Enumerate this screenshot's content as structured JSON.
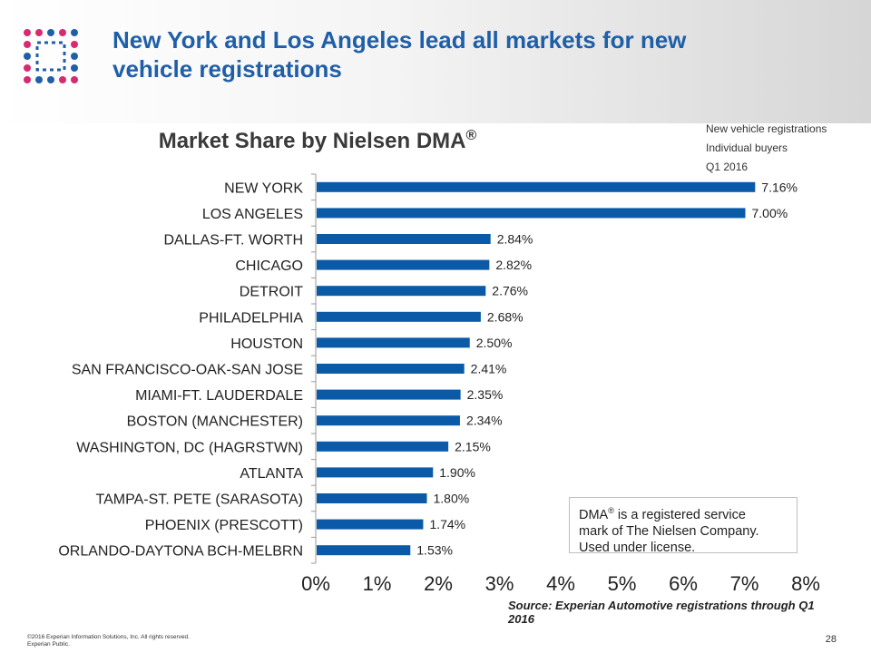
{
  "slide": {
    "title_line1": "New York and Los Angeles lead all markets for new",
    "title_line2": "vehicle registrations",
    "page_number": "28",
    "copyright": "©2016  Experian Information Solutions, Inc. All rights reserved.",
    "classification": "Experian Public."
  },
  "colors": {
    "bar": "#0a5aa8",
    "title": "#1f5fa8",
    "logo_blue": "#1f5fa8",
    "logo_pink": "#d62b70"
  },
  "chart_data": {
    "type": "bar",
    "orientation": "horizontal",
    "title": "Market Share by Nielsen DMA",
    "title_mark": "®",
    "legend_lines": [
      "New vehicle registrations",
      "Individual buyers",
      "Q1 2016"
    ],
    "categories": [
      "NEW YORK",
      "LOS ANGELES",
      "DALLAS-FT. WORTH",
      "CHICAGO",
      "DETROIT",
      "PHILADELPHIA",
      "HOUSTON",
      "SAN FRANCISCO-OAK-SAN JOSE",
      "MIAMI-FT. LAUDERDALE",
      "BOSTON (MANCHESTER)",
      "WASHINGTON, DC (HAGRSTWN)",
      "ATLANTA",
      "TAMPA-ST. PETE (SARASOTA)",
      "PHOENIX (PRESCOTT)",
      "ORLANDO-DAYTONA BCH-MELBRN"
    ],
    "values": [
      7.16,
      7.0,
      2.84,
      2.82,
      2.76,
      2.68,
      2.5,
      2.41,
      2.35,
      2.34,
      2.15,
      1.9,
      1.8,
      1.74,
      1.53
    ],
    "value_labels": [
      "7.16%",
      "7.00%",
      "2.84%",
      "2.82%",
      "2.76%",
      "2.68%",
      "2.50%",
      "2.41%",
      "2.35%",
      "2.34%",
      "2.15%",
      "1.90%",
      "1.80%",
      "1.74%",
      "1.53%"
    ],
    "xlim": [
      0,
      8
    ],
    "x_ticks": [
      "0%",
      "1%",
      "2%",
      "3%",
      "4%",
      "5%",
      "6%",
      "7%",
      "8%"
    ],
    "grid": false,
    "note_line1_a": "DMA",
    "note_line1_mark": "®",
    "note_line1_b": " is a registered service",
    "note_line2": "mark of The Nielsen Company.",
    "note_line3": "Used under license.",
    "source": "Source: Experian Automotive registrations through Q1 2016"
  }
}
